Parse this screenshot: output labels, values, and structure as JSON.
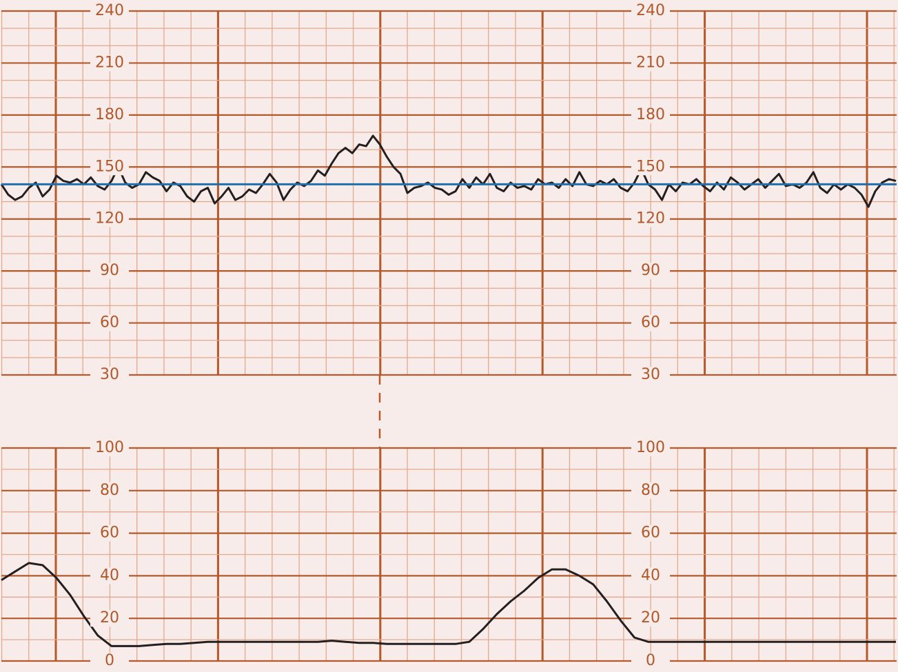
{
  "chart_data": [
    {
      "type": "line",
      "ylim": [
        30,
        240
      ],
      "yticks": [
        30,
        60,
        90,
        120,
        150,
        180,
        210,
        240
      ],
      "grid": true,
      "baseline": 140,
      "baseline_color": "#1f6fad",
      "series": [
        {
          "color": "#231f20",
          "values": [
            140,
            134,
            131,
            133,
            138,
            141,
            133,
            137,
            145,
            142,
            141,
            143,
            140,
            144,
            139,
            137,
            142,
            150,
            141,
            138,
            140,
            147,
            144,
            142,
            136,
            141,
            139,
            133,
            130,
            136,
            138,
            129,
            133,
            138,
            131,
            133,
            137,
            135,
            140,
            146,
            141,
            131,
            137,
            141,
            139,
            142,
            148,
            145,
            152,
            158,
            161,
            158,
            163,
            162,
            168,
            163,
            156,
            150,
            146,
            135,
            138,
            139,
            141,
            138,
            137,
            134,
            136,
            143,
            138,
            144,
            140,
            146,
            138,
            136,
            141,
            138,
            139,
            137,
            143,
            140,
            141,
            138,
            143,
            139,
            147,
            140,
            139,
            142,
            140,
            143,
            138,
            136,
            141,
            149,
            140,
            137,
            131,
            140,
            136,
            141,
            140,
            143,
            139,
            136,
            141,
            137,
            144,
            141,
            137,
            140,
            143,
            138,
            142,
            146,
            139,
            140,
            138,
            141,
            147,
            138,
            135,
            140,
            137,
            140,
            138,
            134,
            127,
            136,
            141,
            143,
            142
          ]
        }
      ]
    },
    {
      "type": "line",
      "ylim": [
        0,
        100
      ],
      "yticks": [
        0,
        20,
        40,
        60,
        80,
        100
      ],
      "grid": true,
      "series": [
        {
          "color": "#231f20",
          "values": [
            38,
            42,
            46,
            45,
            39,
            31,
            21,
            12,
            7,
            7,
            7,
            7.5,
            8,
            8,
            8.5,
            9,
            9,
            9,
            9,
            9,
            9,
            9,
            9,
            9,
            9.5,
            9,
            8.5,
            8.5,
            8,
            8,
            8,
            8,
            8,
            8,
            9,
            15,
            22,
            28,
            33,
            39,
            43,
            43,
            40,
            36,
            28,
            19,
            11,
            9,
            9,
            9,
            9,
            9,
            9,
            9,
            9,
            9,
            9,
            9,
            9,
            9,
            9,
            9,
            9,
            9,
            9,
            9
          ]
        }
      ]
    }
  ]
}
